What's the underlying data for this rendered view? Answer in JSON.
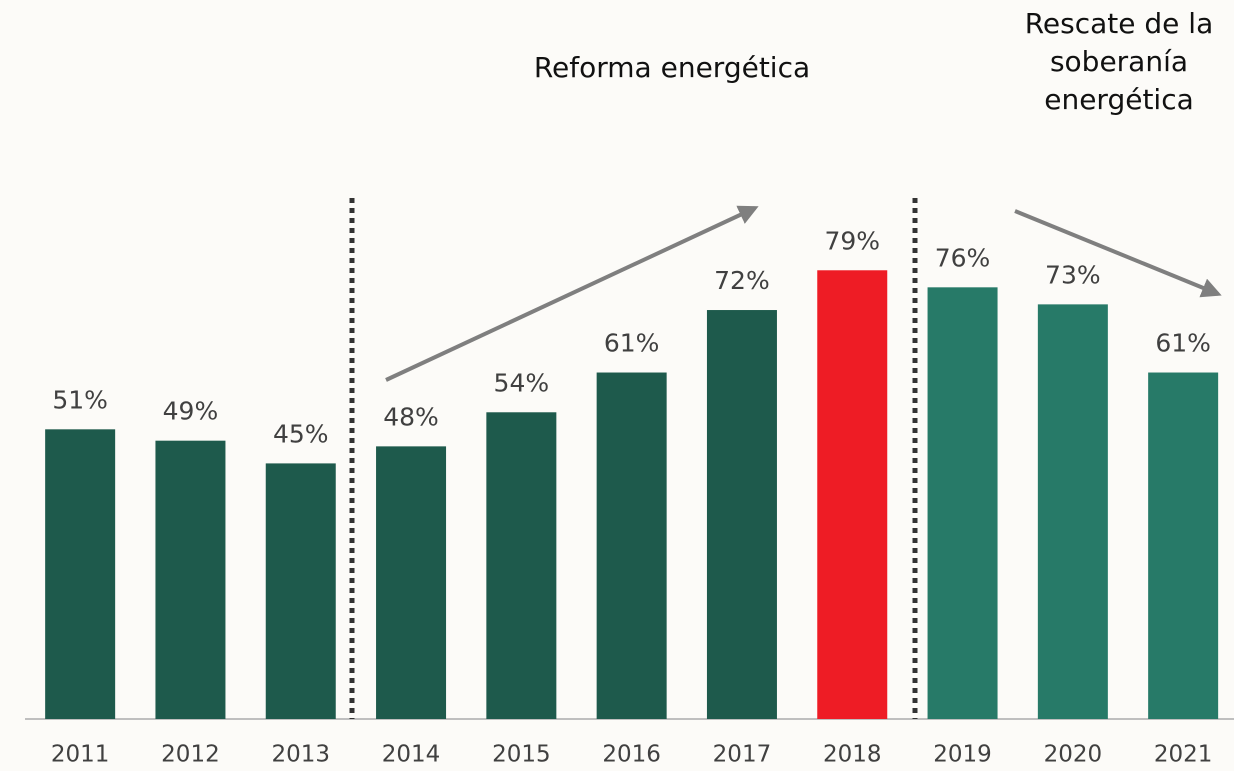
{
  "chart_data": {
    "type": "bar",
    "categories": [
      "2011",
      "2012",
      "2013",
      "2014",
      "2015",
      "2016",
      "2017",
      "2018",
      "2019",
      "2020",
      "2021"
    ],
    "values": [
      51,
      49,
      45,
      48,
      54,
      61,
      72,
      79,
      76,
      73,
      61
    ],
    "value_labels": [
      "51%",
      "49%",
      "45%",
      "48%",
      "54%",
      "61%",
      "72%",
      "79%",
      "76%",
      "73%",
      "61%"
    ],
    "colors": [
      "#1e5a4c",
      "#1e5a4c",
      "#1e5a4c",
      "#1e5a4c",
      "#1e5a4c",
      "#1e5a4c",
      "#1e5a4c",
      "#ee1c25",
      "#277a68",
      "#277a68",
      "#277a68"
    ],
    "ylim": [
      0,
      100
    ],
    "annotations": [
      "Reforma energética",
      "Rescate de la soberanía energética"
    ]
  }
}
